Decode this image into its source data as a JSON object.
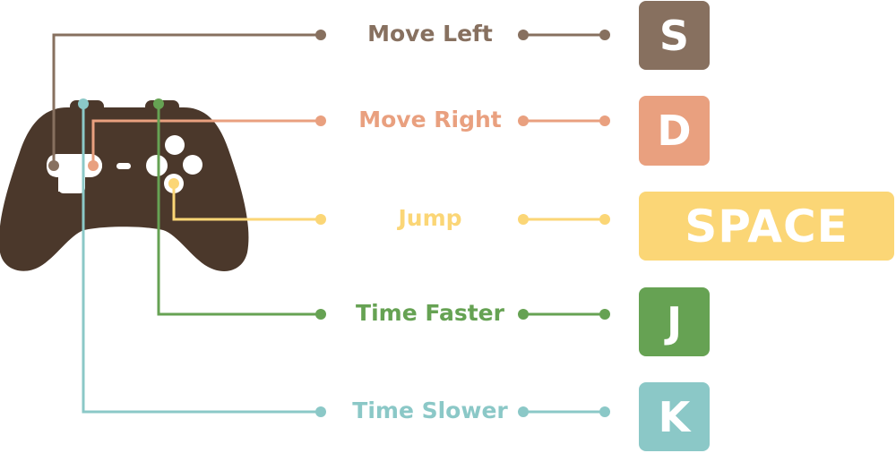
{
  "colors": {
    "controller": "#4b382b",
    "move_left": "#87705f",
    "move_right": "#e9a07f",
    "jump": "#fbd676",
    "time_faster": "#66a253",
    "time_slower": "#8bc8c7"
  },
  "mappings": [
    {
      "action": "Move Left",
      "key": "S",
      "color": "#87705f"
    },
    {
      "action": "Move Right",
      "key": "D",
      "color": "#e9a07f"
    },
    {
      "action": "Jump",
      "key": "SPACE",
      "color": "#fbd676"
    },
    {
      "action": "Time Faster",
      "key": "J",
      "color": "#66a253"
    },
    {
      "action": "Time Slower",
      "key": "K",
      "color": "#8bc8c7"
    }
  ],
  "icons": {
    "controller": "gamepad-icon"
  }
}
